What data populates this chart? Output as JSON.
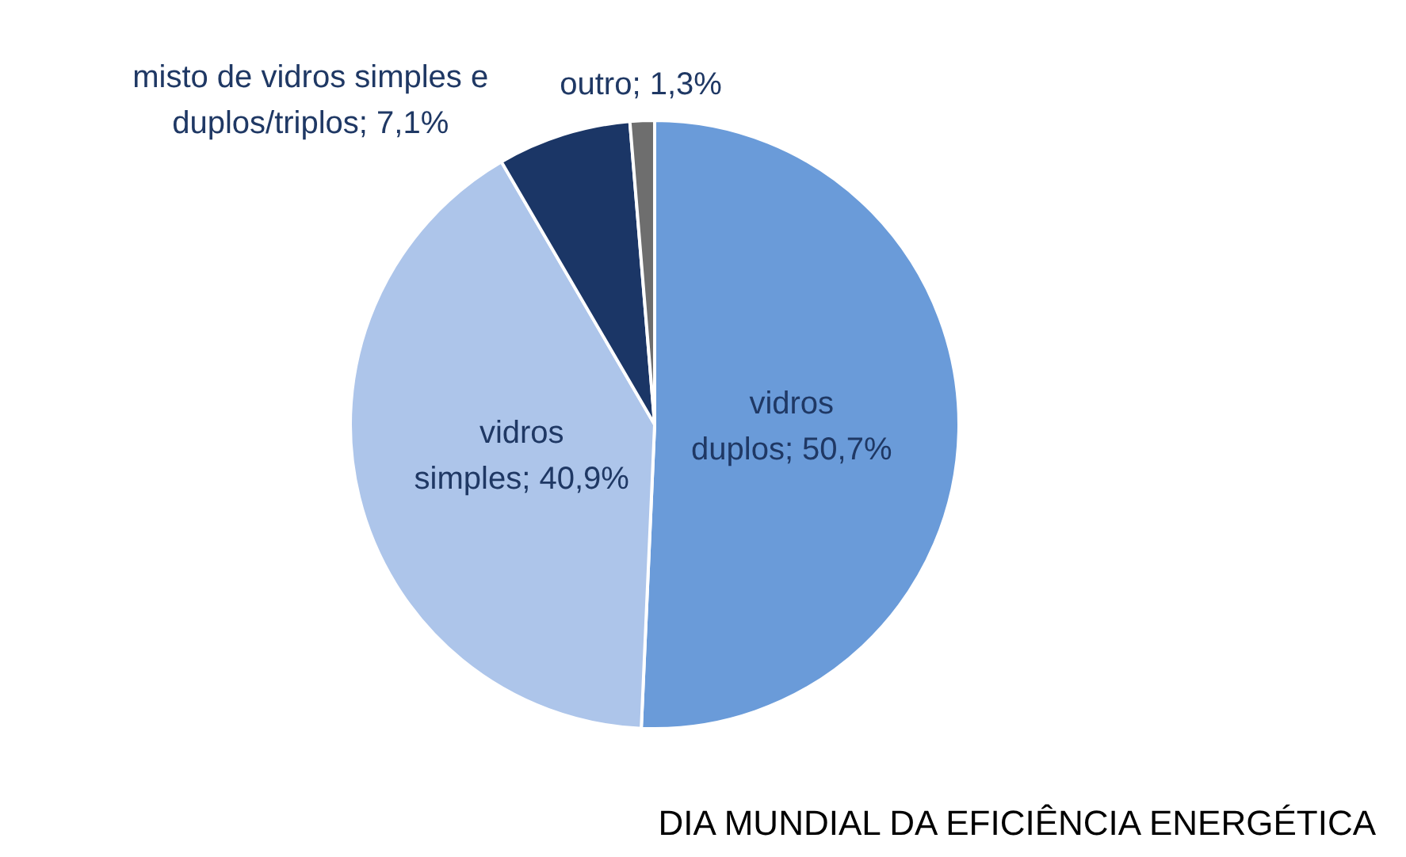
{
  "chart_data": {
    "type": "pie",
    "categories": [
      "vidros duplos",
      "vidros simples",
      "misto de vidros simples e duplos/triplos",
      "outro"
    ],
    "values": [
      50.7,
      40.9,
      7.1,
      1.3
    ],
    "colors": [
      "#6a9bd9",
      "#adc5ea",
      "#1b3666",
      "#6e6e6e"
    ],
    "value_labels": [
      "50,7%",
      "40,9%",
      "7,1%",
      "1,3%"
    ],
    "annotations": [
      "DIA MUNDIAL DA EFICIÊNCIA ENERGÉTICA"
    ]
  }
}
